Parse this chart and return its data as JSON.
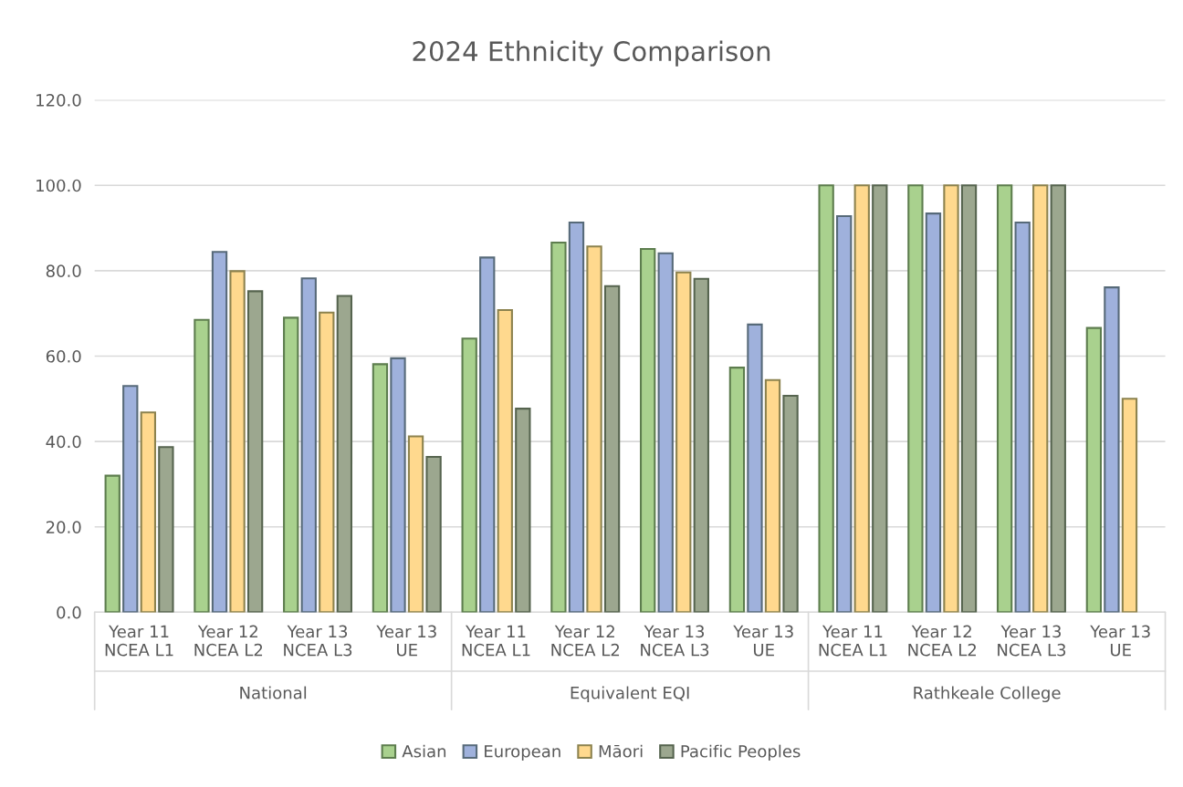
{
  "chart_data": {
    "type": "bar",
    "title": "2024 Ethnicity Comparison",
    "categories": [
      "Year 11\nNCEA L1",
      "Year 12\nNCEA L2",
      "Year 13\nNCEA L3",
      "Year 13\nUE",
      "Year 11\nNCEA L1",
      "Year 12\nNCEA L2",
      "Year 13\nNCEA L3",
      "Year 13\nUE",
      "Year 11\nNCEA L1",
      "Year 12\nNCEA L2",
      "Year 13\nNCEA L3",
      "Year 13\nUE"
    ],
    "annotations": [
      "National",
      "Equivalent EQI",
      "Rathkeale College"
    ],
    "series": [
      {
        "name": "Asian",
        "color": "#a9d18e",
        "values": [
          32.0,
          68.5,
          69.0,
          58.1,
          64.1,
          86.6,
          85.1,
          57.3,
          100,
          100,
          100,
          66.6
        ]
      },
      {
        "name": "European",
        "color": "#9fb1dc",
        "values": [
          53.0,
          84.4,
          78.2,
          59.5,
          83.1,
          91.3,
          84.1,
          67.4,
          92.8,
          93.4,
          91.3,
          76.1
        ]
      },
      {
        "name": "Māori",
        "color": "#ffd98e",
        "values": [
          46.8,
          79.9,
          70.2,
          41.2,
          70.8,
          85.7,
          79.6,
          54.4,
          100,
          100,
          100,
          50.0
        ]
      },
      {
        "name": "Pacific Peoples",
        "color": "#9ca78f",
        "values": [
          38.7,
          75.2,
          74.1,
          36.4,
          47.7,
          76.4,
          78.1,
          50.7,
          100,
          100,
          100,
          null
        ]
      }
    ],
    "ylim": [
      0,
      120
    ],
    "yticks": [
      {
        "value": 0,
        "label": "0.0"
      },
      {
        "value": 20,
        "label": "20.0"
      },
      {
        "value": 40,
        "label": "40.0"
      },
      {
        "value": 60,
        "label": "60.0"
      },
      {
        "value": 80,
        "label": "80.0"
      },
      {
        "value": 100,
        "label": "100.0"
      },
      {
        "value": 120,
        "label": "120.0"
      }
    ],
    "grid": "y",
    "legend": "bottom"
  }
}
